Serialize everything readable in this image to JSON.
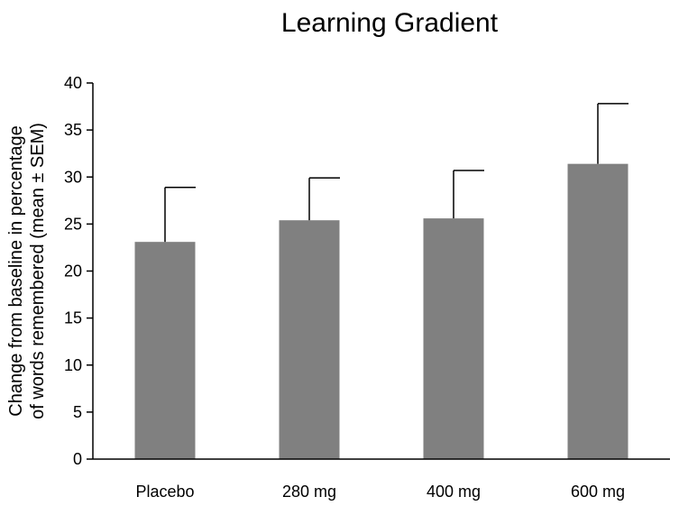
{
  "chart_data": {
    "type": "bar",
    "title": "Learning Gradient",
    "xlabel": "",
    "ylabel_lines": [
      "Change from baseline in percentage",
      "of words remembered (mean ± SEM)"
    ],
    "categories": [
      "Placebo",
      "280 mg",
      "400 mg",
      "600 mg"
    ],
    "values": [
      23.1,
      25.4,
      25.6,
      31.4
    ],
    "errors": [
      5.8,
      4.5,
      5.1,
      6.4
    ],
    "ylim": [
      0,
      40
    ],
    "yticks": [
      0,
      5,
      10,
      15,
      20,
      25,
      30,
      35,
      40
    ],
    "grid": false,
    "bar_color": "#808080",
    "error_bar_color": "#000000",
    "axis_color": "#000000"
  }
}
